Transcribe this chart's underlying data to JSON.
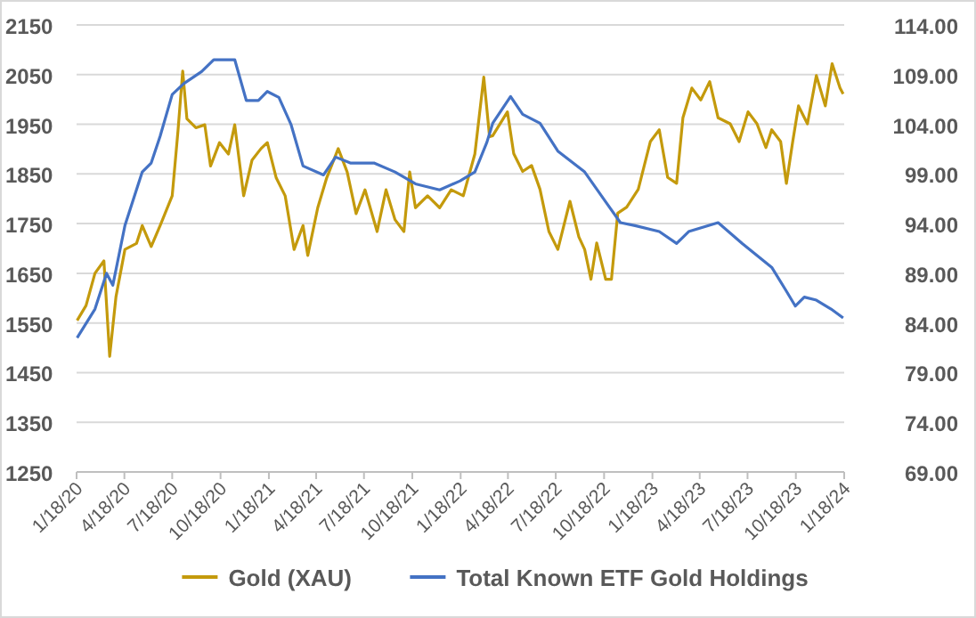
{
  "chart_data": {
    "type": "line",
    "xlim": [
      "2020-01-18",
      "2024-01-18"
    ],
    "xticks": [
      {
        "value": "2020-01-18",
        "label": "1/18/20"
      },
      {
        "value": "2020-04-18",
        "label": "4/18/20"
      },
      {
        "value": "2020-07-18",
        "label": "7/18/20"
      },
      {
        "value": "2020-10-18",
        "label": "10/18/20"
      },
      {
        "value": "2021-01-18",
        "label": "1/18/21"
      },
      {
        "value": "2021-04-18",
        "label": "4/18/21"
      },
      {
        "value": "2021-07-18",
        "label": "7/18/21"
      },
      {
        "value": "2021-10-18",
        "label": "10/18/21"
      },
      {
        "value": "2022-01-18",
        "label": "1/18/22"
      },
      {
        "value": "2022-04-18",
        "label": "4/18/22"
      },
      {
        "value": "2022-07-18",
        "label": "7/18/22"
      },
      {
        "value": "2022-10-18",
        "label": "10/18/22"
      },
      {
        "value": "2023-01-18",
        "label": "1/18/23"
      },
      {
        "value": "2023-04-18",
        "label": "4/18/23"
      },
      {
        "value": "2023-07-18",
        "label": "7/18/23"
      },
      {
        "value": "2023-10-18",
        "label": "10/18/23"
      },
      {
        "value": "2024-01-18",
        "label": "1/18/24"
      }
    ],
    "ylim": [
      1250,
      2150
    ],
    "yticks": [
      1250,
      1350,
      1450,
      1550,
      1650,
      1750,
      1850,
      1950,
      2050,
      2150
    ],
    "y2lim": [
      69,
      114
    ],
    "y2ticks": [
      {
        "value": 69,
        "label": "69.00"
      },
      {
        "value": 74,
        "label": "74.00"
      },
      {
        "value": 79,
        "label": "79.00"
      },
      {
        "value": 84,
        "label": "84.00"
      },
      {
        "value": 89,
        "label": "89.00"
      },
      {
        "value": 94,
        "label": "94.00"
      },
      {
        "value": 99,
        "label": "99.00"
      },
      {
        "value": 104,
        "label": "104.00"
      },
      {
        "value": 109,
        "label": "109.00"
      },
      {
        "value": 114,
        "label": "114.00"
      }
    ],
    "grid": "y",
    "legend": "bottom",
    "series": [
      {
        "name": "Gold (XAU)",
        "color": "#c49a0c",
        "x": [
          "2020-01-19",
          "2020-02-05",
          "2020-02-22",
          "2020-03-10",
          "2020-03-21",
          "2020-04-02",
          "2020-04-19",
          "2020-05-11",
          "2020-05-22",
          "2020-06-08",
          "2020-06-25",
          "2020-07-18",
          "2020-07-29",
          "2020-08-07",
          "2020-08-15",
          "2020-09-01",
          "2020-09-18",
          "2020-09-29",
          "2020-10-16",
          "2020-11-02",
          "2020-11-14",
          "2020-12-01",
          "2020-12-17",
          "2021-01-03",
          "2021-01-15",
          "2021-02-01",
          "2021-02-18",
          "2021-03-07",
          "2021-03-24",
          "2021-04-02",
          "2021-04-21",
          "2021-05-08",
          "2021-05-30",
          "2021-06-16",
          "2021-07-03",
          "2021-07-20",
          "2021-08-12",
          "2021-08-29",
          "2021-09-15",
          "2021-10-02",
          "2021-10-13",
          "2021-10-24",
          "2021-11-16",
          "2021-12-09",
          "2021-12-31",
          "2022-01-23",
          "2022-02-14",
          "2022-03-03",
          "2022-03-14",
          "2022-03-20",
          "2022-04-17",
          "2022-04-29",
          "2022-05-16",
          "2022-06-02",
          "2022-06-18",
          "2022-07-05",
          "2022-07-22",
          "2022-08-14",
          "2022-08-31",
          "2022-09-11",
          "2022-09-23",
          "2022-10-04",
          "2022-10-21",
          "2022-11-01",
          "2022-11-13",
          "2022-11-30",
          "2022-12-22",
          "2023-01-14",
          "2023-01-31",
          "2023-02-16",
          "2023-03-05",
          "2023-03-17",
          "2023-04-03",
          "2023-04-20",
          "2023-05-07",
          "2023-05-23",
          "2023-06-15",
          "2023-07-02",
          "2023-07-19",
          "2023-08-05",
          "2023-08-22",
          "2023-09-02",
          "2023-09-19",
          "2023-09-30",
          "2023-10-12",
          "2023-10-23",
          "2023-11-09",
          "2023-11-26",
          "2023-12-13",
          "2023-12-26",
          "2024-01-10",
          "2024-01-16"
        ],
        "values": [
          1555,
          1585,
          1650,
          1675,
          1483,
          1603,
          1698,
          1710,
          1746,
          1704,
          1746,
          1806,
          1937,
          2057,
          1961,
          1943,
          1949,
          1866,
          1913,
          1890,
          1949,
          1806,
          1878,
          1901,
          1913,
          1842,
          1806,
          1698,
          1746,
          1686,
          1782,
          1842,
          1901,
          1854,
          1770,
          1818,
          1734,
          1818,
          1758,
          1734,
          1854,
          1782,
          1806,
          1782,
          1818,
          1806,
          1890,
          2045,
          1925,
          1927,
          1975,
          1891,
          1855,
          1867,
          1819,
          1734,
          1698,
          1795,
          1723,
          1698,
          1638,
          1711,
          1638,
          1638,
          1771,
          1783,
          1819,
          1915,
          1939,
          1843,
          1831,
          1963,
          2023,
          1999,
          2036,
          1963,
          1951,
          1915,
          1975,
          1951,
          1903,
          1939,
          1915,
          1831,
          1915,
          1987,
          1951,
          2048,
          1987,
          2072,
          2023,
          2011
        ]
      },
      {
        "name": "Total Known ETF Gold Holdings",
        "color": "#4472c4",
        "axis": "y2",
        "x": [
          "2020-01-19",
          "2020-02-22",
          "2020-03-15",
          "2020-03-27",
          "2020-04-19",
          "2020-05-22",
          "2020-06-08",
          "2020-06-25",
          "2020-07-18",
          "2020-08-09",
          "2020-09-12",
          "2020-10-05",
          "2020-11-14",
          "2020-12-06",
          "2020-12-29",
          "2021-01-15",
          "2021-02-06",
          "2021-03-01",
          "2021-03-24",
          "2021-05-02",
          "2021-05-25",
          "2021-06-22",
          "2021-08-06",
          "2021-09-15",
          "2021-10-24",
          "2021-12-09",
          "2022-01-17",
          "2022-02-14",
          "2022-03-09",
          "2022-03-20",
          "2022-04-23",
          "2022-05-16",
          "2022-06-18",
          "2022-07-22",
          "2022-09-11",
          "2022-10-21",
          "2022-11-18",
          "2022-12-16",
          "2023-01-31",
          "2023-03-05",
          "2023-03-28",
          "2023-05-23",
          "2023-07-08",
          "2023-09-02",
          "2023-09-30",
          "2023-10-17",
          "2023-11-03",
          "2023-11-26",
          "2023-12-24",
          "2024-01-16"
        ],
        "values": [
          82.5,
          85.4,
          89.0,
          87.8,
          93.8,
          99.2,
          100.1,
          102.8,
          107.0,
          108.1,
          109.3,
          110.5,
          110.5,
          106.4,
          106.4,
          107.3,
          106.7,
          104.0,
          99.8,
          98.9,
          100.7,
          100.1,
          100.1,
          99.2,
          98.0,
          97.4,
          98.3,
          99.2,
          102.2,
          104.1,
          106.8,
          105.0,
          104.1,
          101.3,
          99.2,
          96.2,
          94.1,
          93.8,
          93.2,
          92.0,
          93.2,
          94.1,
          92.0,
          89.6,
          87.2,
          85.7,
          86.6,
          86.3,
          85.4,
          84.5
        ]
      }
    ]
  }
}
